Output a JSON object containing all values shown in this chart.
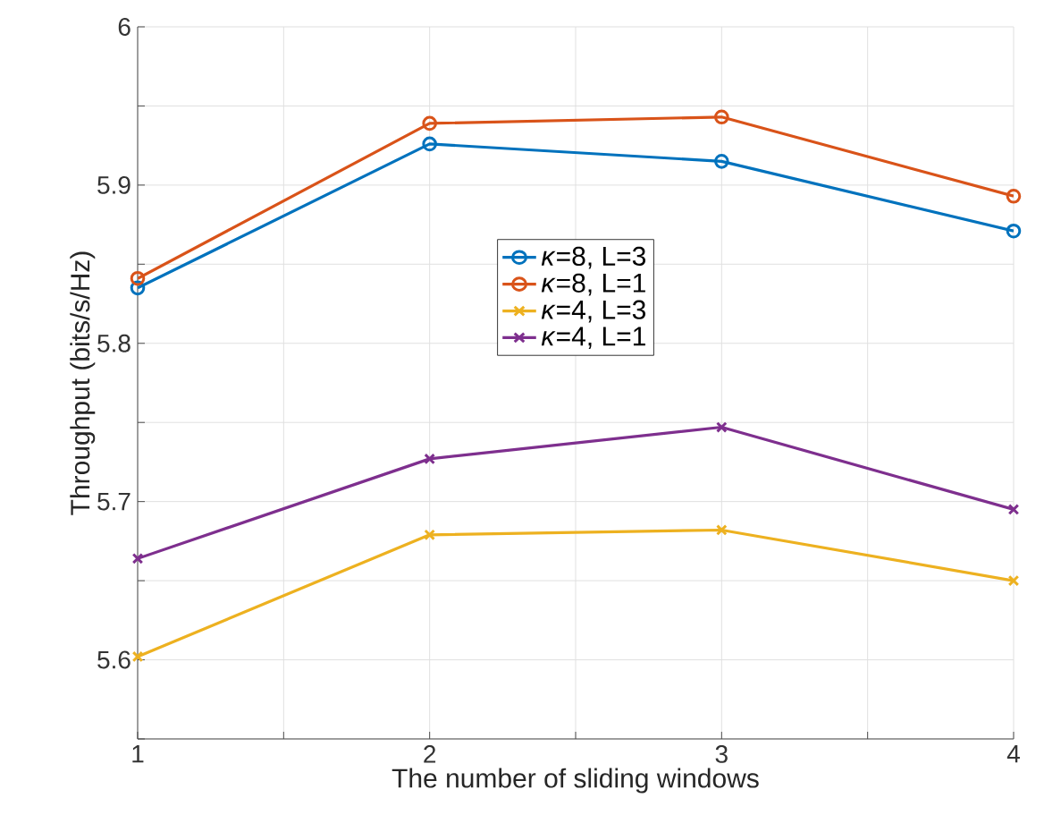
{
  "chart_data": {
    "type": "line",
    "xlabel": "The number of sliding windows",
    "ylabel": "Throughput (bits/s/Hz)",
    "x": [
      1,
      2,
      3,
      4
    ],
    "series": [
      {
        "name": "*κ*=8, L=3",
        "color": "#0072bd",
        "marker": "circle",
        "values": [
          5.835,
          5.926,
          5.915,
          5.871
        ]
      },
      {
        "name": "*κ*=8, L=1",
        "color": "#d95319",
        "marker": "circle",
        "values": [
          5.841,
          5.939,
          5.943,
          5.893
        ]
      },
      {
        "name": "*κ*=4, L=3",
        "color": "#edb120",
        "marker": "cross",
        "values": [
          5.602,
          5.679,
          5.682,
          5.65
        ]
      },
      {
        "name": "*κ*=4, L=1",
        "color": "#7e2f8e",
        "marker": "cross",
        "values": [
          5.664,
          5.727,
          5.747,
          5.695
        ]
      }
    ],
    "xlim": [
      1,
      4
    ],
    "ylim": [
      5.55,
      6
    ],
    "xticks": [
      1,
      {
        "value": 1.5,
        "label": null
      },
      2,
      {
        "value": 2.5,
        "label": null
      },
      3,
      {
        "value": 3.5,
        "label": null
      },
      4
    ],
    "yticks": [
      {
        "value": 5.55,
        "label": null
      },
      5.6,
      {
        "value": 5.65,
        "label": null
      },
      5.7,
      {
        "value": 5.75,
        "label": null
      },
      5.8,
      {
        "value": 5.85,
        "label": null
      },
      5.9,
      {
        "value": 5.95,
        "label": null
      },
      6
    ],
    "grid": true,
    "legend": "center",
    "line_style": "solid"
  }
}
